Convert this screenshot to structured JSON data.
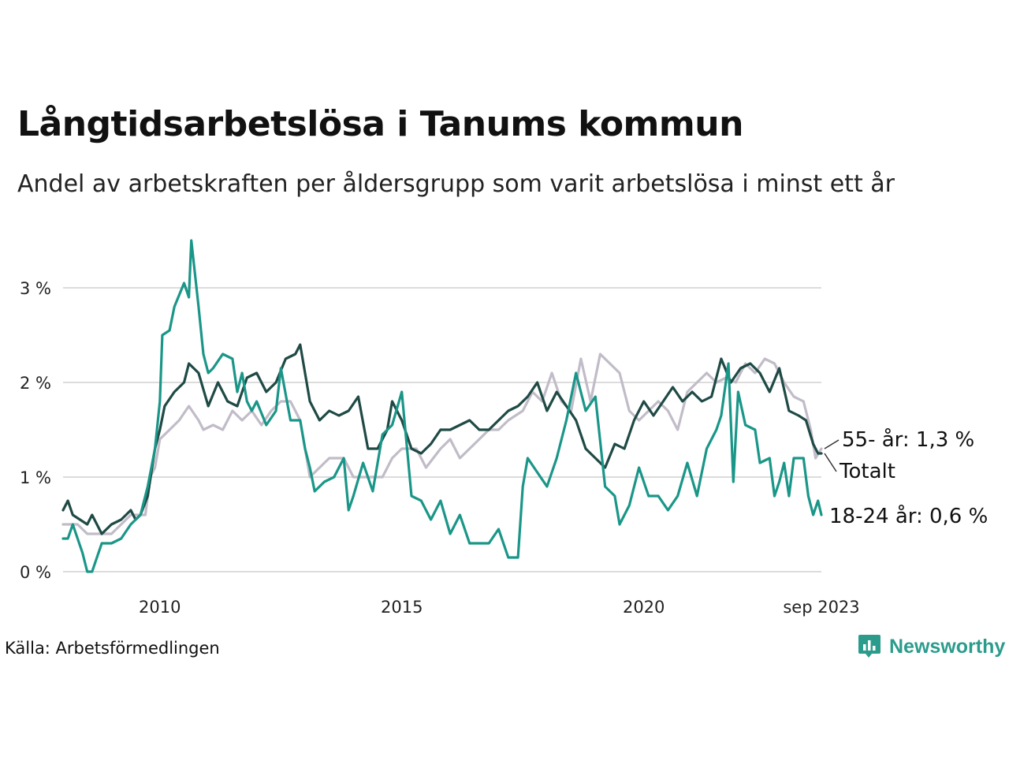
{
  "header": {
    "title": "Långtidsarbetslösa i Tanums kommun",
    "subtitle": "Andel av arbetskraften per åldersgrupp som varit arbetslösa i minst ett år"
  },
  "footer": {
    "source": "Källa: Arbetsförmedlingen",
    "brand": "Newsworthy",
    "brand_icon": "bar-chart-speech-bubble-icon"
  },
  "chart_data": {
    "type": "line",
    "title": "Långtidsarbetslösa i Tanums kommun",
    "xlabel": "",
    "ylabel": "",
    "xlim": [
      2008.0,
      2023.67
    ],
    "ylim": [
      0,
      3
    ],
    "grid": true,
    "y_ticks": [
      {
        "value": 0,
        "label": "0 %"
      },
      {
        "value": 1,
        "label": "1 %"
      },
      {
        "value": 2,
        "label": "2 %"
      },
      {
        "value": 3,
        "label": "3 %"
      }
    ],
    "x_ticks": [
      {
        "value": 2010.0,
        "label": "2010"
      },
      {
        "value": 2015.0,
        "label": "2015"
      },
      {
        "value": 2020.0,
        "label": "2020"
      },
      {
        "value": 2023.67,
        "label": "sep 2023"
      }
    ],
    "series": [
      {
        "name": "55- år",
        "color": "#c1bcc8",
        "end_label": "55- år: 1,3 %",
        "points": [
          [
            2008.0,
            0.5
          ],
          [
            2008.3,
            0.5
          ],
          [
            2008.5,
            0.4
          ],
          [
            2009.0,
            0.4
          ],
          [
            2009.2,
            0.5
          ],
          [
            2009.4,
            0.6
          ],
          [
            2009.6,
            0.6
          ],
          [
            2009.7,
            0.6
          ],
          [
            2009.8,
            1.0
          ],
          [
            2009.9,
            1.1
          ],
          [
            2010.0,
            1.4
          ],
          [
            2010.2,
            1.5
          ],
          [
            2010.4,
            1.6
          ],
          [
            2010.6,
            1.75
          ],
          [
            2010.8,
            1.6
          ],
          [
            2010.9,
            1.5
          ],
          [
            2011.1,
            1.55
          ],
          [
            2011.3,
            1.5
          ],
          [
            2011.5,
            1.7
          ],
          [
            2011.7,
            1.6
          ],
          [
            2011.9,
            1.7
          ],
          [
            2012.1,
            1.55
          ],
          [
            2012.3,
            1.7
          ],
          [
            2012.5,
            1.8
          ],
          [
            2012.7,
            1.8
          ],
          [
            2012.9,
            1.6
          ],
          [
            2013.1,
            1.0
          ],
          [
            2013.3,
            1.1
          ],
          [
            2013.5,
            1.2
          ],
          [
            2013.8,
            1.2
          ],
          [
            2014.0,
            1.0
          ],
          [
            2014.3,
            1.0
          ],
          [
            2014.6,
            1.0
          ],
          [
            2014.8,
            1.2
          ],
          [
            2015.0,
            1.3
          ],
          [
            2015.3,
            1.3
          ],
          [
            2015.5,
            1.1
          ],
          [
            2015.8,
            1.3
          ],
          [
            2016.0,
            1.4
          ],
          [
            2016.2,
            1.2
          ],
          [
            2016.4,
            1.3
          ],
          [
            2016.6,
            1.4
          ],
          [
            2016.8,
            1.5
          ],
          [
            2017.0,
            1.5
          ],
          [
            2017.2,
            1.6
          ],
          [
            2017.5,
            1.7
          ],
          [
            2017.7,
            1.9
          ],
          [
            2017.9,
            1.8
          ],
          [
            2018.1,
            2.1
          ],
          [
            2018.3,
            1.8
          ],
          [
            2018.5,
            1.7
          ],
          [
            2018.7,
            2.25
          ],
          [
            2018.9,
            1.8
          ],
          [
            2019.1,
            2.3
          ],
          [
            2019.3,
            2.2
          ],
          [
            2019.5,
            2.1
          ],
          [
            2019.7,
            1.7
          ],
          [
            2019.9,
            1.6
          ],
          [
            2020.1,
            1.7
          ],
          [
            2020.3,
            1.8
          ],
          [
            2020.5,
            1.7
          ],
          [
            2020.7,
            1.5
          ],
          [
            2020.9,
            1.9
          ],
          [
            2021.1,
            2.0
          ],
          [
            2021.3,
            2.1
          ],
          [
            2021.5,
            2.0
          ],
          [
            2021.7,
            2.05
          ],
          [
            2021.9,
            2.0
          ],
          [
            2022.1,
            2.2
          ],
          [
            2022.3,
            2.1
          ],
          [
            2022.5,
            2.25
          ],
          [
            2022.7,
            2.2
          ],
          [
            2022.9,
            2.0
          ],
          [
            2023.1,
            1.85
          ],
          [
            2023.3,
            1.8
          ],
          [
            2023.45,
            1.5
          ],
          [
            2023.55,
            1.2
          ],
          [
            2023.67,
            1.3
          ]
        ]
      },
      {
        "name": "Totalt",
        "color": "#1f4a45",
        "end_label": "Totalt",
        "points": [
          [
            2008.0,
            0.65
          ],
          [
            2008.1,
            0.75
          ],
          [
            2008.2,
            0.6
          ],
          [
            2008.35,
            0.55
          ],
          [
            2008.5,
            0.5
          ],
          [
            2008.6,
            0.6
          ],
          [
            2008.8,
            0.4
          ],
          [
            2009.0,
            0.5
          ],
          [
            2009.2,
            0.55
          ],
          [
            2009.4,
            0.65
          ],
          [
            2009.5,
            0.55
          ],
          [
            2009.6,
            0.6
          ],
          [
            2009.75,
            0.8
          ],
          [
            2009.9,
            1.3
          ],
          [
            2010.0,
            1.5
          ],
          [
            2010.1,
            1.75
          ],
          [
            2010.3,
            1.9
          ],
          [
            2010.5,
            2.0
          ],
          [
            2010.6,
            2.2
          ],
          [
            2010.8,
            2.1
          ],
          [
            2011.0,
            1.75
          ],
          [
            2011.2,
            2.0
          ],
          [
            2011.4,
            1.8
          ],
          [
            2011.6,
            1.75
          ],
          [
            2011.8,
            2.05
          ],
          [
            2012.0,
            2.1
          ],
          [
            2012.2,
            1.9
          ],
          [
            2012.4,
            2.0
          ],
          [
            2012.6,
            2.25
          ],
          [
            2012.8,
            2.3
          ],
          [
            2012.9,
            2.4
          ],
          [
            2013.1,
            1.8
          ],
          [
            2013.3,
            1.6
          ],
          [
            2013.5,
            1.7
          ],
          [
            2013.7,
            1.65
          ],
          [
            2013.9,
            1.7
          ],
          [
            2014.1,
            1.85
          ],
          [
            2014.3,
            1.3
          ],
          [
            2014.5,
            1.3
          ],
          [
            2014.7,
            1.5
          ],
          [
            2014.8,
            1.8
          ],
          [
            2015.0,
            1.6
          ],
          [
            2015.2,
            1.3
          ],
          [
            2015.4,
            1.25
          ],
          [
            2015.6,
            1.35
          ],
          [
            2015.8,
            1.5
          ],
          [
            2016.0,
            1.5
          ],
          [
            2016.2,
            1.55
          ],
          [
            2016.4,
            1.6
          ],
          [
            2016.6,
            1.5
          ],
          [
            2016.8,
            1.5
          ],
          [
            2017.0,
            1.6
          ],
          [
            2017.2,
            1.7
          ],
          [
            2017.4,
            1.75
          ],
          [
            2017.6,
            1.85
          ],
          [
            2017.8,
            2.0
          ],
          [
            2018.0,
            1.7
          ],
          [
            2018.2,
            1.9
          ],
          [
            2018.4,
            1.75
          ],
          [
            2018.6,
            1.6
          ],
          [
            2018.8,
            1.3
          ],
          [
            2019.0,
            1.2
          ],
          [
            2019.2,
            1.1
          ],
          [
            2019.4,
            1.35
          ],
          [
            2019.6,
            1.3
          ],
          [
            2019.8,
            1.6
          ],
          [
            2020.0,
            1.8
          ],
          [
            2020.2,
            1.65
          ],
          [
            2020.4,
            1.8
          ],
          [
            2020.6,
            1.95
          ],
          [
            2020.8,
            1.8
          ],
          [
            2021.0,
            1.9
          ],
          [
            2021.2,
            1.8
          ],
          [
            2021.4,
            1.85
          ],
          [
            2021.6,
            2.25
          ],
          [
            2021.8,
            2.0
          ],
          [
            2022.0,
            2.15
          ],
          [
            2022.2,
            2.2
          ],
          [
            2022.4,
            2.1
          ],
          [
            2022.6,
            1.9
          ],
          [
            2022.8,
            2.15
          ],
          [
            2023.0,
            1.7
          ],
          [
            2023.2,
            1.65
          ],
          [
            2023.35,
            1.6
          ],
          [
            2023.5,
            1.35
          ],
          [
            2023.6,
            1.25
          ],
          [
            2023.67,
            1.25
          ]
        ]
      },
      {
        "name": "18-24 år",
        "color": "#1a9688",
        "end_label": "18-24 år: 0,6 %",
        "points": [
          [
            2008.0,
            0.35
          ],
          [
            2008.1,
            0.35
          ],
          [
            2008.2,
            0.5
          ],
          [
            2008.4,
            0.2
          ],
          [
            2008.5,
            0.0
          ],
          [
            2008.6,
            0.0
          ],
          [
            2008.8,
            0.3
          ],
          [
            2009.0,
            0.3
          ],
          [
            2009.2,
            0.35
          ],
          [
            2009.4,
            0.5
          ],
          [
            2009.6,
            0.6
          ],
          [
            2009.75,
            0.9
          ],
          [
            2009.9,
            1.3
          ],
          [
            2010.0,
            1.8
          ],
          [
            2010.05,
            2.5
          ],
          [
            2010.2,
            2.55
          ],
          [
            2010.3,
            2.8
          ],
          [
            2010.5,
            3.05
          ],
          [
            2010.6,
            2.9
          ],
          [
            2010.65,
            3.5
          ],
          [
            2010.8,
            2.8
          ],
          [
            2010.9,
            2.3
          ],
          [
            2011.0,
            2.1
          ],
          [
            2011.1,
            2.15
          ],
          [
            2011.3,
            2.3
          ],
          [
            2011.5,
            2.25
          ],
          [
            2011.6,
            1.9
          ],
          [
            2011.7,
            2.1
          ],
          [
            2011.8,
            1.8
          ],
          [
            2011.9,
            1.7
          ],
          [
            2012.0,
            1.8
          ],
          [
            2012.2,
            1.55
          ],
          [
            2012.4,
            1.7
          ],
          [
            2012.5,
            2.15
          ],
          [
            2012.7,
            1.6
          ],
          [
            2012.9,
            1.6
          ],
          [
            2013.0,
            1.3
          ],
          [
            2013.1,
            1.1
          ],
          [
            2013.2,
            0.85
          ],
          [
            2013.4,
            0.95
          ],
          [
            2013.6,
            1.0
          ],
          [
            2013.8,
            1.2
          ],
          [
            2013.9,
            0.65
          ],
          [
            2014.0,
            0.8
          ],
          [
            2014.2,
            1.15
          ],
          [
            2014.4,
            0.85
          ],
          [
            2014.6,
            1.45
          ],
          [
            2014.8,
            1.55
          ],
          [
            2015.0,
            1.9
          ],
          [
            2015.2,
            0.8
          ],
          [
            2015.4,
            0.75
          ],
          [
            2015.6,
            0.55
          ],
          [
            2015.8,
            0.75
          ],
          [
            2016.0,
            0.4
          ],
          [
            2016.2,
            0.6
          ],
          [
            2016.4,
            0.3
          ],
          [
            2016.8,
            0.3
          ],
          [
            2017.0,
            0.45
          ],
          [
            2017.2,
            0.15
          ],
          [
            2017.4,
            0.15
          ],
          [
            2017.5,
            0.9
          ],
          [
            2017.6,
            1.2
          ],
          [
            2017.8,
            1.05
          ],
          [
            2018.0,
            0.9
          ],
          [
            2018.2,
            1.2
          ],
          [
            2018.4,
            1.6
          ],
          [
            2018.6,
            2.1
          ],
          [
            2018.8,
            1.7
          ],
          [
            2019.0,
            1.85
          ],
          [
            2019.2,
            0.9
          ],
          [
            2019.4,
            0.8
          ],
          [
            2019.5,
            0.5
          ],
          [
            2019.7,
            0.7
          ],
          [
            2019.9,
            1.1
          ],
          [
            2020.1,
            0.8
          ],
          [
            2020.3,
            0.8
          ],
          [
            2020.5,
            0.65
          ],
          [
            2020.7,
            0.8
          ],
          [
            2020.9,
            1.15
          ],
          [
            2021.1,
            0.8
          ],
          [
            2021.3,
            1.3
          ],
          [
            2021.5,
            1.5
          ],
          [
            2021.6,
            1.65
          ],
          [
            2021.75,
            2.2
          ],
          [
            2021.85,
            0.95
          ],
          [
            2021.95,
            1.9
          ],
          [
            2022.1,
            1.55
          ],
          [
            2022.3,
            1.5
          ],
          [
            2022.4,
            1.15
          ],
          [
            2022.6,
            1.2
          ],
          [
            2022.7,
            0.8
          ],
          [
            2022.8,
            0.95
          ],
          [
            2022.9,
            1.15
          ],
          [
            2023.0,
            0.8
          ],
          [
            2023.1,
            1.2
          ],
          [
            2023.3,
            1.2
          ],
          [
            2023.4,
            0.8
          ],
          [
            2023.5,
            0.6
          ],
          [
            2023.6,
            0.75
          ],
          [
            2023.67,
            0.6
          ]
        ]
      }
    ]
  }
}
